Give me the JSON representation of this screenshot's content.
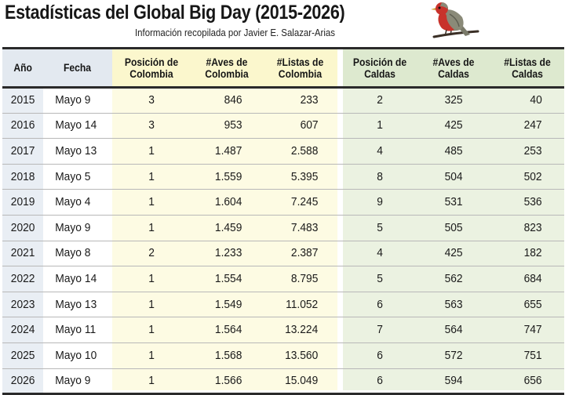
{
  "header": {
    "title": "Estadísticas del Global Big Day (2015-2026)",
    "subtitle": "Información recopilada por Javier E. Salazar-Arias"
  },
  "icons": {
    "bird": "robin-bird-illustration"
  },
  "colors": {
    "colombia_band": "#fdfbe3",
    "caldas_band": "#ebf2e1",
    "year_column": "#e9eef4",
    "bird_body": "#c8322b"
  },
  "table": {
    "columns": {
      "anio": "Año",
      "fecha": "Fecha",
      "pos_colombia": "Posición de Colombia",
      "aves_colombia": "#Aves de Colombia",
      "listas_colombia": "#Listas de Colombia",
      "pos_caldas": "Posición de Caldas",
      "aves_caldas": "#Aves de Caldas",
      "listas_caldas": "#Listas de Caldas"
    },
    "rows": [
      {
        "anio": "2015",
        "fecha": "Mayo 9",
        "pos_col": "3",
        "aves_col": "846",
        "listas_col": "233",
        "pos_cal": "2",
        "aves_cal": "325",
        "listas_cal": "40"
      },
      {
        "anio": "2016",
        "fecha": "Mayo 14",
        "pos_col": "3",
        "aves_col": "953",
        "listas_col": "607",
        "pos_cal": "1",
        "aves_cal": "425",
        "listas_cal": "247"
      },
      {
        "anio": "2017",
        "fecha": "Mayo 13",
        "pos_col": "1",
        "aves_col": "1.487",
        "listas_col": "2.588",
        "pos_cal": "4",
        "aves_cal": "485",
        "listas_cal": "253"
      },
      {
        "anio": "2018",
        "fecha": "Mayo 5",
        "pos_col": "1",
        "aves_col": "1.559",
        "listas_col": "5.395",
        "pos_cal": "8",
        "aves_cal": "504",
        "listas_cal": "502"
      },
      {
        "anio": "2019",
        "fecha": "Mayo 4",
        "pos_col": "1",
        "aves_col": "1.604",
        "listas_col": "7.245",
        "pos_cal": "9",
        "aves_cal": "531",
        "listas_cal": "536"
      },
      {
        "anio": "2020",
        "fecha": "Mayo 9",
        "pos_col": "1",
        "aves_col": "1.459",
        "listas_col": "7.483",
        "pos_cal": "5",
        "aves_cal": "505",
        "listas_cal": "823"
      },
      {
        "anio": "2021",
        "fecha": "Mayo 8",
        "pos_col": "2",
        "aves_col": "1.233",
        "listas_col": "2.387",
        "pos_cal": "4",
        "aves_cal": "425",
        "listas_cal": "182"
      },
      {
        "anio": "2022",
        "fecha": "Mayo 14",
        "pos_col": "1",
        "aves_col": "1.554",
        "listas_col": "8.795",
        "pos_cal": "5",
        "aves_cal": "562",
        "listas_cal": "684"
      },
      {
        "anio": "2023",
        "fecha": "Mayo 13",
        "pos_col": "1",
        "aves_col": "1.549",
        "listas_col": "11.052",
        "pos_cal": "6",
        "aves_cal": "563",
        "listas_cal": "655"
      },
      {
        "anio": "2024",
        "fecha": "Mayo 11",
        "pos_col": "1",
        "aves_col": "1.564",
        "listas_col": "13.224",
        "pos_cal": "7",
        "aves_cal": "564",
        "listas_cal": "747"
      },
      {
        "anio": "2025",
        "fecha": "Mayo 10",
        "pos_col": "1",
        "aves_col": "1.568",
        "listas_col": "13.560",
        "pos_cal": "6",
        "aves_cal": "572",
        "listas_cal": "751"
      },
      {
        "anio": "2026",
        "fecha": "Mayo 9",
        "pos_col": "1",
        "aves_col": "1.566",
        "listas_col": "15.049",
        "pos_cal": "6",
        "aves_cal": "594",
        "listas_cal": "656"
      }
    ]
  }
}
